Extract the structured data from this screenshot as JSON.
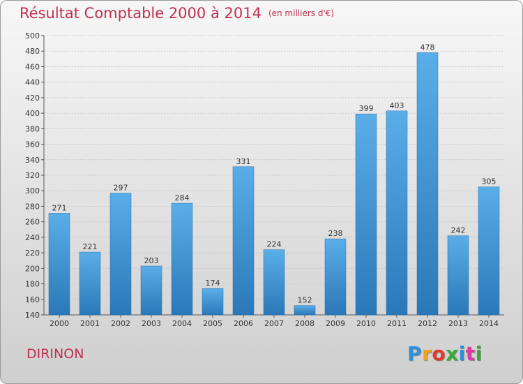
{
  "header": {
    "title": "Résultat Comptable 2000 à 2014",
    "subtitle": "(en milliers d'€)"
  },
  "footer": {
    "commune": "DIRINON",
    "logo_text": "Proxiti"
  },
  "colors": {
    "title": "#c0304e",
    "bar_top": "#5aaee8",
    "bar_bottom": "#2a78b8",
    "logo": [
      "#2f8fd8",
      "#f0a020",
      "#e03a2a",
      "#3aa83a",
      "#2f8fd8",
      "#d83aa0",
      "#3aa83a"
    ]
  },
  "chart_data": {
    "type": "bar",
    "title": "Résultat Comptable 2000 à 2014",
    "subtitle": "(en milliers d'€)",
    "xlabel": "",
    "ylabel": "",
    "categories": [
      "2000",
      "2001",
      "2002",
      "2003",
      "2004",
      "2005",
      "2006",
      "2007",
      "2008",
      "2009",
      "2010",
      "2011",
      "2012",
      "2013",
      "2014"
    ],
    "values": [
      271,
      221,
      297,
      203,
      284,
      174,
      331,
      224,
      152,
      238,
      399,
      403,
      478,
      242,
      305
    ],
    "ylim": [
      140,
      500
    ],
    "yticks": [
      140,
      160,
      180,
      200,
      220,
      240,
      260,
      280,
      300,
      320,
      340,
      360,
      380,
      400,
      420,
      440,
      460,
      480,
      500
    ],
    "grid": true,
    "data_labels": true
  }
}
